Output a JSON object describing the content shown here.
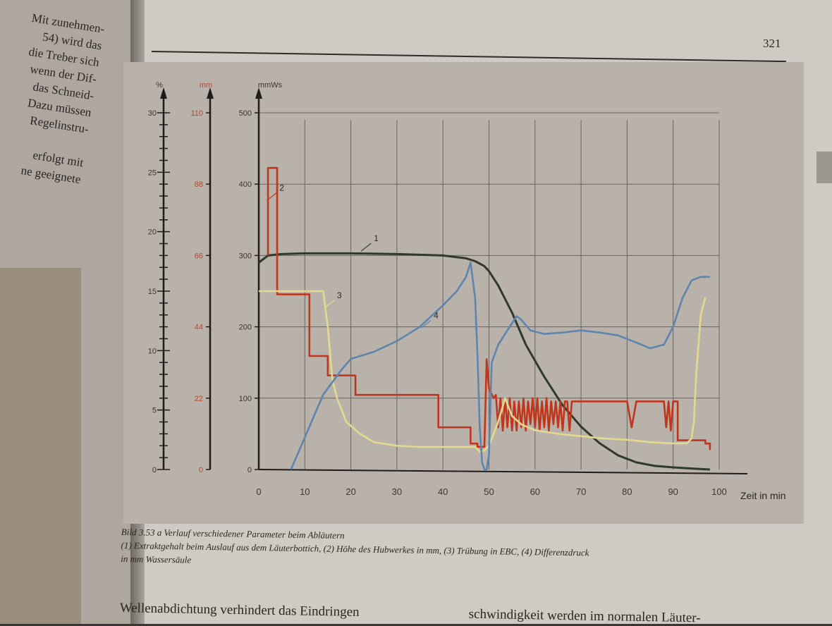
{
  "page": {
    "number": "321"
  },
  "left_page_lines": [
    "Mit zunehmen-",
    "54) wird das",
    "die Treber sich",
    "wenn der Dif-",
    "das Schneid-",
    "Dazu müssen",
    "Regelinstru-",
    "",
    "erfolgt mit",
    "ne geeignete"
  ],
  "figure": {
    "caption_title": "Bild 3.53 a  Verlauf verschiedener Parameter beim Abläutern",
    "caption_body_1": "(1) Extraktgehalt beim Auslauf aus dem Läuterbottich, (2) Höhe des Hubwerkes in mm, (3) Trübung in EBC, (4) Differenzdruck",
    "caption_body_2": "in mm Wassersäule"
  },
  "body_text": {
    "left_col": "Wellenabdichtung verhindert das Eindringen",
    "right_col": "schwindigkeit werden im normalen Läuter-"
  },
  "chart_data": {
    "type": "line",
    "xlabel": "Zeit in min",
    "xlim": [
      0,
      100
    ],
    "x_ticks": [
      0,
      10,
      20,
      30,
      40,
      50,
      60,
      70,
      80,
      90,
      100
    ],
    "y_axes": [
      {
        "id": "percent",
        "unit": "%",
        "ylim": [
          0,
          30
        ],
        "ticks": [
          0,
          5,
          10,
          15,
          20,
          25,
          30
        ]
      },
      {
        "id": "mm",
        "unit": "mm",
        "ylim": [
          0,
          110
        ],
        "ticks": [
          0,
          22,
          44,
          66,
          88,
          110
        ]
      },
      {
        "id": "mmws",
        "unit": "mmWs",
        "ylim": [
          0,
          500
        ],
        "ticks": [
          0,
          100,
          200,
          300,
          400,
          500
        ]
      }
    ],
    "grid": true,
    "colors": {
      "1": "#2f3a2a",
      "2": "#c0361c",
      "3": "#e3d98e",
      "4": "#5f84ad"
    },
    "series": [
      {
        "name": "1",
        "axis": "mmws",
        "label_at": [
          25,
          320
        ],
        "x": [
          0,
          2,
          5,
          10,
          20,
          30,
          40,
          45,
          47,
          49,
          50,
          52,
          55,
          58,
          62,
          66,
          70,
          74,
          78,
          82,
          86,
          90,
          95,
          98
        ],
        "y": [
          290,
          300,
          302,
          303,
          303,
          302,
          300,
          296,
          292,
          285,
          278,
          258,
          220,
          175,
          130,
          90,
          60,
          37,
          20,
          10,
          5,
          3,
          1,
          0
        ]
      },
      {
        "name": "2",
        "axis": "mm",
        "label_at": [
          4.5,
          86
        ],
        "x": [
          2,
          2,
          4,
          4,
          11,
          11,
          15,
          15,
          21,
          21,
          39,
          39,
          46,
          46,
          47.5,
          47.5,
          49,
          49.5,
          50,
          51,
          51.5,
          52,
          52.5,
          53,
          53.5,
          54,
          54.5,
          55,
          55.5,
          56,
          56.5,
          57,
          57.5,
          58,
          58.5,
          59,
          59.5,
          60,
          60.5,
          61,
          61.5,
          62,
          62.5,
          63,
          63.5,
          64,
          64.5,
          65,
          65.5,
          66,
          66.5,
          67,
          67.5,
          68,
          68.5,
          69,
          69.5,
          70,
          70.5,
          71,
          71.5,
          72,
          80,
          81,
          82,
          88,
          88.5,
          89,
          89.5,
          90,
          90.5,
          91,
          91,
          97,
          97,
          98,
          98
        ],
        "y": [
          66,
          93,
          93,
          54,
          54,
          35,
          35,
          29,
          29,
          23,
          23,
          13,
          13,
          8,
          8,
          7,
          7,
          34,
          25,
          22,
          23,
          13,
          22,
          12,
          22,
          13,
          22,
          12,
          21,
          12,
          21,
          13,
          22,
          12,
          21,
          14,
          22,
          13,
          22,
          12,
          21,
          13,
          22,
          12,
          21,
          14,
          21,
          13,
          21,
          12,
          21,
          21,
          12,
          21,
          21,
          21,
          21,
          21,
          21,
          21,
          21,
          21,
          21,
          13,
          21,
          21,
          13,
          21,
          12,
          21,
          21,
          21,
          9,
          9,
          8,
          8,
          6
        ]
      },
      {
        "name": "3",
        "axis": "percent",
        "label_at": [
          17,
          14.4
        ],
        "x": [
          0,
          2,
          5,
          12,
          14,
          15,
          16,
          17,
          19,
          22,
          25,
          30,
          35,
          40,
          45,
          47,
          48,
          49,
          50,
          52,
          53.5,
          55,
          57,
          60,
          65,
          70,
          75,
          80,
          85,
          90,
          93,
          94,
          94.5,
          95,
          96,
          97
        ],
        "y": [
          15,
          15,
          15,
          15,
          15,
          12,
          7.5,
          6,
          4,
          3,
          2.3,
          2,
          1.9,
          1.9,
          1.9,
          1.9,
          1.5,
          1.6,
          2,
          4,
          6,
          4.5,
          3.8,
          3.3,
          3,
          2.8,
          2.6,
          2.5,
          2.3,
          2.2,
          2.2,
          2.6,
          4,
          8,
          13,
          14.5
        ]
      },
      {
        "name": "4",
        "axis": "mmws",
        "label_at": [
          38,
          212
        ],
        "x": [
          7,
          10,
          14,
          18,
          20,
          25,
          30,
          35,
          40,
          43,
          45,
          46,
          47,
          47.5,
          48,
          48.5,
          49,
          49.5,
          50,
          50.3,
          50.6,
          52,
          54,
          56,
          57,
          59,
          62,
          66,
          70,
          74,
          78,
          82,
          85,
          88,
          90,
          92,
          94,
          96,
          98
        ],
        "y": [
          0,
          45,
          105,
          140,
          155,
          165,
          180,
          200,
          230,
          250,
          270,
          290,
          240,
          160,
          60,
          10,
          0,
          0,
          20,
          90,
          150,
          175,
          195,
          215,
          210,
          195,
          190,
          192,
          195,
          192,
          188,
          178,
          170,
          175,
          200,
          240,
          265,
          270,
          270
        ]
      }
    ]
  }
}
